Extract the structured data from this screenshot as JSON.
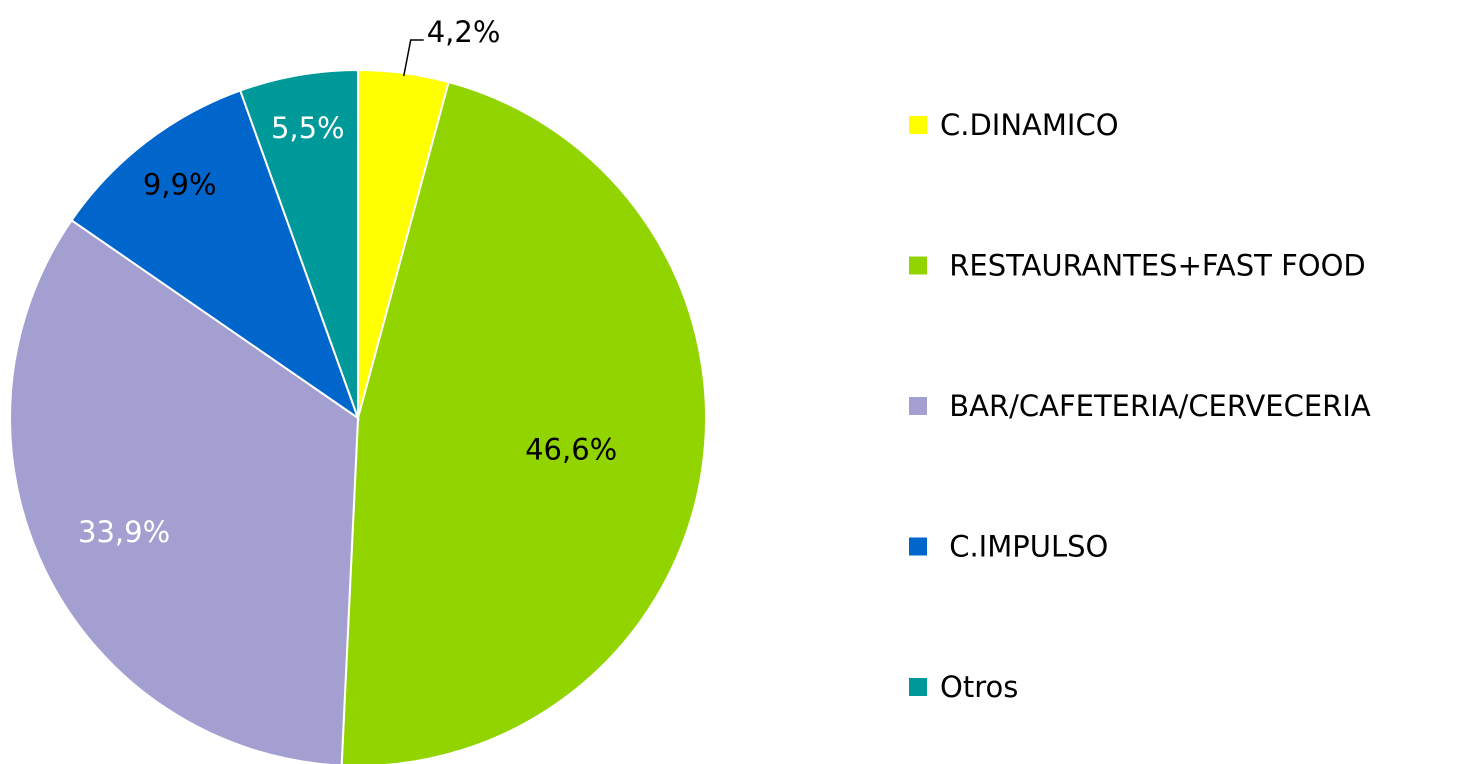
{
  "chart_data": {
    "type": "pie",
    "categories": [
      "C.DINAMICO",
      " RESTAURANTES+FAST FOOD",
      " BAR/CAFETERIA/CERVECERIA",
      " C.IMPULSO",
      "Otros"
    ],
    "values": [
      4.2,
      46.6,
      33.9,
      9.9,
      5.5
    ],
    "value_labels": [
      "4,2%",
      "46,6%",
      "33,9%",
      "9,9%",
      "5,5%"
    ],
    "colors": [
      "#ffff00",
      "#92d400",
      "#a49fd1",
      "#0066cc",
      "#009999"
    ],
    "label_colors": [
      "#000000",
      "#000000",
      "#ffffff",
      "#000000",
      "#ffffff"
    ],
    "legend": "right"
  }
}
